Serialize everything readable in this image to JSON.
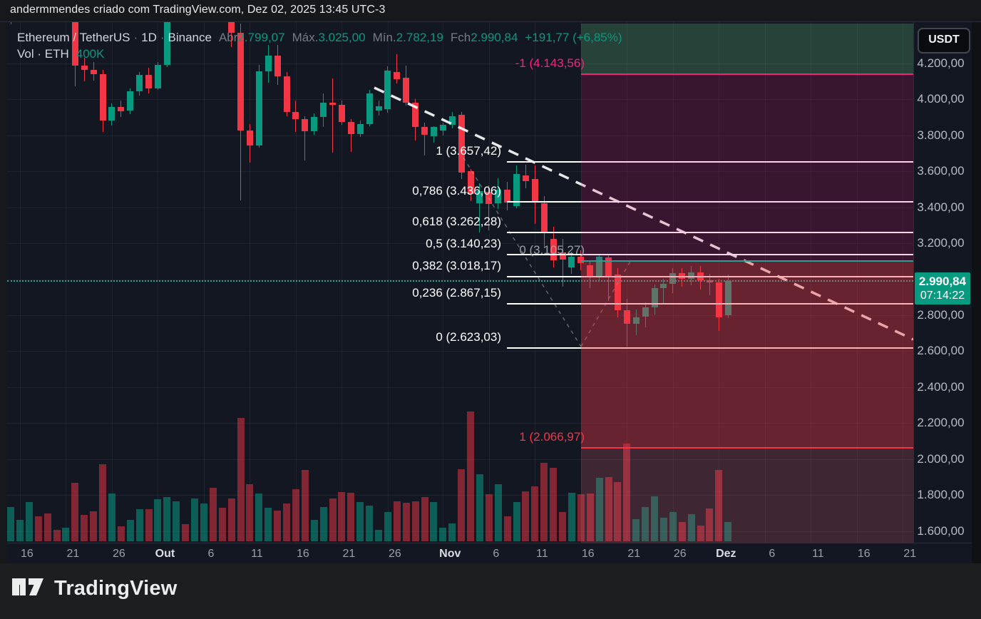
{
  "top_bar": {
    "attribution": "andermmendes criado com TradingView.com, Dez 02, 2025 13:45 UTC-3"
  },
  "legend": {
    "symbol": "Ethereum / TetherUS",
    "interval": "1D",
    "exchange": "Binance",
    "separator": "·",
    "ohlc": [
      {
        "label": "Abr",
        "value": "2.799,07"
      },
      {
        "label": "Máx.",
        "value": "3.025,00"
      },
      {
        "label": "Mín.",
        "value": "2.782,19"
      },
      {
        "label": "Fch",
        "value": "2.990,84"
      }
    ],
    "change": "+191,77 (+6,85%)",
    "volume_label": "Vol · ETH",
    "volume_value": "400K"
  },
  "price_axis": {
    "currency": "USDT",
    "labels": [
      "4.200,00",
      "4.000,00",
      "3.800,00",
      "3.600,00",
      "3.400,00",
      "3.200,00",
      "2.800,00",
      "2.600,00",
      "2.400,00",
      "2.200,00",
      "2.000,00",
      "1.800,00",
      "1.600,00"
    ],
    "label_values": [
      4200,
      4000,
      3800,
      3600,
      3400,
      3200,
      2800,
      2600,
      2400,
      2200,
      2000,
      1800,
      1600
    ],
    "last_price": {
      "text": "2.990,84",
      "countdown": "07:14:22",
      "value": 2990.84
    }
  },
  "time_axis": {
    "ticks": [
      {
        "label": "16",
        "index": 1,
        "major": false
      },
      {
        "label": "21",
        "index": 6,
        "major": false
      },
      {
        "label": "26",
        "index": 11,
        "major": false
      },
      {
        "label": "Out",
        "index": 16,
        "major": true
      },
      {
        "label": "6",
        "index": 21,
        "major": false
      },
      {
        "label": "11",
        "index": 26,
        "major": false
      },
      {
        "label": "16",
        "index": 31,
        "major": false
      },
      {
        "label": "21",
        "index": 36,
        "major": false
      },
      {
        "label": "26",
        "index": 41,
        "major": false
      },
      {
        "label": "Nov",
        "index": 47,
        "major": true
      },
      {
        "label": "6",
        "index": 52,
        "major": false
      },
      {
        "label": "11",
        "index": 57,
        "major": false
      },
      {
        "label": "16",
        "index": 62,
        "major": false
      },
      {
        "label": "21",
        "index": 67,
        "major": false
      },
      {
        "label": "26",
        "index": 72,
        "major": false
      },
      {
        "label": "Dez",
        "index": 77,
        "major": true
      },
      {
        "label": "6",
        "index": 82,
        "major": false
      },
      {
        "label": "11",
        "index": 87,
        "major": false
      },
      {
        "label": "16",
        "index": 92,
        "major": false
      },
      {
        "label": "21",
        "index": 97,
        "major": false
      }
    ]
  },
  "fib_retracement": {
    "levels": [
      {
        "label": "1 (3.657,42)",
        "price": 3657.42
      },
      {
        "label": "0,786 (3.436,06)",
        "price": 3436.06
      },
      {
        "label": "0,618 (3.262,28)",
        "price": 3262.28
      },
      {
        "label": "0,5 (3.140,23)",
        "price": 3140.23
      },
      {
        "label": "0,382 (3.018,17)",
        "price": 3018.17
      },
      {
        "label": "0,236 (2.867,15)",
        "price": 2867.15
      },
      {
        "label": "0 (2.623,03)",
        "price": 2623.03
      }
    ]
  },
  "fib_extension": {
    "levels": [
      {
        "label": "-1 (4.143,56)",
        "price": 4143.56,
        "style": "pink"
      },
      {
        "label": "0 (3.105,27)",
        "price": 3105.27,
        "style": "gray"
      },
      {
        "label": "1 (2.066,97)",
        "price": 2066.97,
        "style": "red"
      }
    ]
  },
  "colors": {
    "up": "#089981",
    "down": "#f23645",
    "vol_up": "rgba(8,153,129,0.55)",
    "vol_down": "rgba(242,54,69,0.5)",
    "fib_white": "#ffffff",
    "fib_pink": "#f0257e",
    "fib_red": "#f23645",
    "fib_teal": "#2f9e8f",
    "fib_gray": "#9aa0ab",
    "band_green": "rgba(90,180,120,0.28)",
    "band_maroon": "rgba(232,24,111,0.18)",
    "band_crimson": "rgba(242,54,69,0.38)",
    "band_faded": "rgba(242,100,120,0.2)",
    "last_price_line": "#26a69a"
  },
  "chart_data": {
    "type": "candlestick",
    "title": "Ethereum / TetherUS 1D Binance",
    "ylabel": "Price (USDT)",
    "visible_price_range": [
      1600,
      4420
    ],
    "volume_unit": "K ETH",
    "columns": [
      "date",
      "open",
      "high",
      "low",
      "close",
      "volume_k"
    ],
    "candles": [
      [
        "09-15",
        4440,
        4525,
        4420,
        4505,
        720
      ],
      [
        "09-16",
        4505,
        4575,
        4455,
        4555,
        450
      ],
      [
        "09-17",
        4555,
        4625,
        4445,
        4590,
        825
      ],
      [
        "09-18",
        4590,
        4615,
        4430,
        4478,
        525
      ],
      [
        "09-19",
        4478,
        4560,
        4440,
        4466,
        585
      ],
      [
        "09-20",
        4466,
        4505,
        4430,
        4450,
        240
      ],
      [
        "09-21",
        4450,
        4525,
        4432,
        4472,
        285
      ],
      [
        "09-22",
        4472,
        4480,
        4072,
        4190,
        1230
      ],
      [
        "09-23",
        4190,
        4232,
        4100,
        4165,
        555
      ],
      [
        "09-24",
        4165,
        4210,
        4105,
        4142,
        630
      ],
      [
        "09-25",
        4142,
        4165,
        3820,
        3882,
        1620
      ],
      [
        "09-26",
        3882,
        3978,
        3855,
        3958,
        1005
      ],
      [
        "09-27",
        3958,
        3992,
        3902,
        3936,
        315
      ],
      [
        "09-28",
        3936,
        4062,
        3918,
        4046,
        450
      ],
      [
        "09-29",
        4046,
        4152,
        4022,
        4136,
        675
      ],
      [
        "09-30",
        4136,
        4178,
        4032,
        4062,
        675
      ],
      [
        "10-01",
        4062,
        4208,
        4052,
        4192,
        885
      ],
      [
        "10-02",
        4192,
        4502,
        4182,
        4488,
        930
      ],
      [
        "10-03",
        4488,
        4562,
        4432,
        4532,
        840
      ],
      [
        "10-04",
        4532,
        4565,
        4438,
        4512,
        360
      ],
      [
        "10-05",
        4512,
        4572,
        4452,
        4552,
        900
      ],
      [
        "10-06",
        4552,
        4652,
        4462,
        4622,
        795
      ],
      [
        "10-07",
        4622,
        4682,
        4502,
        4612,
        1125
      ],
      [
        "10-08",
        4612,
        4652,
        4442,
        4522,
        705
      ],
      [
        "10-09",
        4522,
        4542,
        4292,
        4372,
        900
      ],
      [
        "10-10",
        4372,
        4422,
        3438,
        3828,
        2595
      ],
      [
        "10-11",
        3828,
        3862,
        3648,
        3742,
        1200
      ],
      [
        "10-12",
        3742,
        4192,
        3732,
        4158,
        1000
      ],
      [
        "10-13",
        4158,
        4302,
        4092,
        4242,
        700
      ],
      [
        "10-14",
        4242,
        4302,
        4082,
        4128,
        650
      ],
      [
        "10-15",
        4128,
        4152,
        3908,
        3932,
        800
      ],
      [
        "10-16",
        3932,
        3992,
        3818,
        3892,
        1100
      ],
      [
        "10-17",
        3892,
        3908,
        3662,
        3822,
        1500
      ],
      [
        "10-18",
        3822,
        3922,
        3802,
        3902,
        450
      ],
      [
        "10-19",
        3902,
        4035,
        3845,
        3982,
        720
      ],
      [
        "10-20",
        3982,
        4115,
        3705,
        3972,
        900
      ],
      [
        "10-21",
        3972,
        3995,
        3858,
        3875,
        1035
      ],
      [
        "10-22",
        3875,
        3892,
        3708,
        3806,
        1020
      ],
      [
        "10-23",
        3806,
        3882,
        3792,
        3862,
        825
      ],
      [
        "10-24",
        3862,
        4052,
        3852,
        4035,
        750
      ],
      [
        "10-25",
        3938,
        3992,
        3912,
        3962,
        240
      ],
      [
        "10-26",
        3945,
        4185,
        3928,
        4160,
        615
      ],
      [
        "10-27",
        4152,
        4252,
        4088,
        4112,
        840
      ],
      [
        "10-28",
        4120,
        4188,
        3968,
        3982,
        810
      ],
      [
        "10-29",
        3982,
        4002,
        3772,
        3846,
        840
      ],
      [
        "10-30",
        3846,
        3872,
        3688,
        3802,
        930
      ],
      [
        "10-31",
        3795,
        3852,
        3758,
        3846,
        825
      ],
      [
        "11-01",
        3826,
        3872,
        3798,
        3858,
        285
      ],
      [
        "11-02",
        3858,
        3932,
        3838,
        3906,
        375
      ],
      [
        "11-03",
        3914,
        3932,
        3558,
        3594,
        1515
      ],
      [
        "11-04",
        3602,
        3612,
        3436,
        3476,
        2730
      ],
      [
        "11-05",
        3424,
        3532,
        3258,
        3491,
        1410
      ],
      [
        "11-06",
        3487,
        3522,
        3272,
        3420,
        990
      ],
      [
        "11-07",
        3422,
        3562,
        3390,
        3498,
        1200
      ],
      [
        "11-08",
        3498,
        3542,
        3382,
        3428,
        525
      ],
      [
        "11-09",
        3406,
        3632,
        3396,
        3584,
        825
      ],
      [
        "11-10",
        3576,
        3636,
        3505,
        3544,
        1050
      ],
      [
        "11-11",
        3556,
        3632,
        3308,
        3436,
        1155
      ],
      [
        "11-12",
        3424,
        3462,
        3172,
        3257,
        1650
      ],
      [
        "11-13",
        3226,
        3292,
        3065,
        3106,
        1545
      ],
      [
        "11-14",
        3150,
        3226,
        2958,
        3110,
        615
      ],
      [
        "11-15",
        3066,
        3152,
        3028,
        3126,
        1020
      ],
      [
        "11-16",
        3126,
        3162,
        3048,
        3090,
        990
      ],
      [
        "11-17",
        3078,
        3102,
        2952,
        3010,
        1005
      ],
      [
        "11-18",
        3010,
        3142,
        2988,
        3126,
        1335
      ],
      [
        "11-19",
        3122,
        3142,
        2880,
        3018,
        1350
      ],
      [
        "11-20",
        3027,
        3062,
        2788,
        2828,
        1245
      ],
      [
        "11-21",
        2828,
        2892,
        2623,
        2752,
        2055
      ],
      [
        "11-22",
        2752,
        2832,
        2690,
        2790,
        465
      ],
      [
        "11-23",
        2790,
        2872,
        2732,
        2845,
        720
      ],
      [
        "11-24",
        2845,
        2972,
        2802,
        2951,
        945
      ],
      [
        "11-25",
        2951,
        3002,
        2862,
        2973,
        495
      ],
      [
        "11-26",
        2973,
        3062,
        2922,
        3034,
        615
      ],
      [
        "11-27",
        3034,
        3062,
        2958,
        3002,
        405
      ],
      [
        "11-28",
        3002,
        3072,
        2968,
        3038,
        570
      ],
      [
        "11-29",
        3038,
        3072,
        2942,
        2995,
        330
      ],
      [
        "11-30",
        2995,
        3032,
        2912,
        2982,
        690
      ],
      [
        "12-01",
        2982,
        3002,
        2712,
        2788,
        1500
      ],
      [
        "12-02",
        2799.07,
        3025.0,
        2782.19,
        2990.84,
        400
      ]
    ]
  },
  "footer": {
    "brand": "TradingView"
  }
}
